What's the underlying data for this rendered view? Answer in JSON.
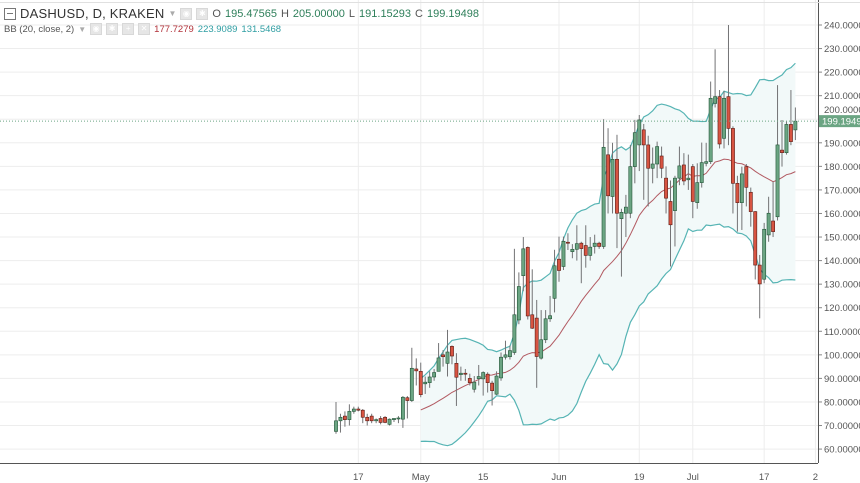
{
  "legend": {
    "symbol": "DASHUSD, D, KRAKEN",
    "o_label": "O",
    "o": "195.47565",
    "h_label": "H",
    "h": "205.00000",
    "l_label": "L",
    "l": "191.15293",
    "c_label": "C",
    "c": "199.19498",
    "indicator": "BB (20, close, 2)",
    "bb_basis": "177.7279",
    "bb_upper": "223.9089",
    "bb_lower": "131.5468"
  },
  "colors": {
    "up": "#6ba583",
    "up_border": "#225437",
    "down": "#d75442",
    "down_border": "#5b1a13",
    "wick": "#737375",
    "band": "#56b4b4",
    "band_fill": "#f2f9f9",
    "basis": "#b25a62",
    "last_price": "#6ba583"
  },
  "chart_data": {
    "type": "candlestick",
    "interval": "1D",
    "ylim": [
      50,
      245
    ],
    "yticks": [
      "240.00000",
      "230.00000",
      "220.00000",
      "210.00000",
      "200.00000",
      "190.00000",
      "180.00000",
      "170.00000",
      "160.00000",
      "150.00000",
      "140.00000",
      "130.00000",
      "120.00000",
      "110.00000",
      "100.00000",
      "90.00000",
      "80.00000",
      "70.00000",
      "60.00000"
    ],
    "xticks": [
      {
        "label": "17",
        "date": "2017-04-17"
      },
      {
        "label": "May",
        "date": "2017-05-01"
      },
      {
        "label": "15",
        "date": "2017-05-15"
      },
      {
        "label": "Jun",
        "date": "2017-06-01"
      },
      {
        "label": "19",
        "date": "2017-06-19"
      },
      {
        "label": "Jul",
        "date": "2017-07-01"
      },
      {
        "label": "17",
        "date": "2017-07-17"
      },
      {
        "label": "2",
        "date": ""
      }
    ],
    "last_price": "199.19498",
    "grid": true,
    "indicator": {
      "type": "bollinger",
      "length": 20,
      "source": "close",
      "mult": 2
    },
    "columns": [
      "date",
      "open",
      "high",
      "low",
      "close"
    ],
    "candles": [
      [
        "2017-04-12",
        67.5,
        80,
        66.5,
        72
      ],
      [
        "2017-04-13",
        72,
        75,
        67,
        73.5
      ],
      [
        "2017-04-14",
        74,
        76,
        69.5,
        72.5
      ],
      [
        "2017-04-15",
        72.5,
        79,
        70,
        76
      ],
      [
        "2017-04-16",
        76,
        78,
        75,
        77
      ],
      [
        "2017-04-17",
        77,
        78,
        76,
        76.5
      ],
      [
        "2017-04-18",
        76.5,
        77,
        71,
        73.5
      ],
      [
        "2017-04-19",
        73.5,
        75,
        70,
        72
      ],
      [
        "2017-04-20",
        74,
        75,
        71,
        72
      ],
      [
        "2017-04-21",
        72,
        73,
        71,
        72.5
      ],
      [
        "2017-04-22",
        73,
        74,
        70.5,
        71.3
      ],
      [
        "2017-04-23",
        73.5,
        74,
        71,
        71.3
      ],
      [
        "2017-04-24",
        70.5,
        73,
        70,
        72.7
      ],
      [
        "2017-04-25",
        72.5,
        73,
        71.5,
        73
      ],
      [
        "2017-04-26",
        73,
        74,
        71,
        73.2
      ],
      [
        "2017-04-27",
        72.7,
        82.5,
        69,
        82
      ],
      [
        "2017-04-28",
        81.8,
        82.5,
        73,
        80.6
      ],
      [
        "2017-04-29",
        80.6,
        103,
        80,
        94.3
      ],
      [
        "2017-04-30",
        94,
        98.5,
        87,
        93.2
      ],
      [
        "2017-05-01",
        93,
        96.7,
        82,
        83.1
      ],
      [
        "2017-05-02",
        87.7,
        90.8,
        83.4,
        88.4
      ],
      [
        "2017-05-03",
        88.2,
        93,
        86,
        90.6
      ],
      [
        "2017-05-04",
        90.6,
        94,
        89,
        92.5
      ],
      [
        "2017-05-05",
        93,
        105,
        93,
        98.7
      ],
      [
        "2017-05-06",
        100,
        102,
        95,
        99.2
      ],
      [
        "2017-05-07",
        96.4,
        110.6,
        90.8,
        101.2
      ],
      [
        "2017-05-08",
        103.6,
        104,
        96,
        99.5
      ],
      [
        "2017-05-09",
        96.4,
        100.7,
        78.3,
        90.5
      ],
      [
        "2017-05-10",
        91.6,
        95,
        89,
        92.2
      ],
      [
        "2017-05-11",
        92.2,
        94,
        89,
        92
      ],
      [
        "2017-05-12",
        90,
        92,
        87,
        88.2
      ],
      [
        "2017-05-13",
        85.4,
        91,
        84,
        88.4
      ],
      [
        "2017-05-14",
        89.9,
        95.7,
        87,
        90.8
      ],
      [
        "2017-05-15",
        89.8,
        93,
        82.7,
        92.5
      ],
      [
        "2017-05-16",
        91.8,
        92.6,
        84,
        88.2
      ],
      [
        "2017-05-17",
        88,
        89,
        78.5,
        84.8
      ],
      [
        "2017-05-18",
        83.3,
        93,
        83,
        91
      ],
      [
        "2017-05-19",
        90.2,
        101,
        89,
        99
      ],
      [
        "2017-05-20",
        99,
        106,
        98,
        100
      ],
      [
        "2017-05-21",
        99.2,
        104,
        98,
        101.8
      ],
      [
        "2017-05-22",
        101,
        145,
        100,
        117
      ],
      [
        "2017-05-23",
        114.8,
        135,
        113,
        129
      ],
      [
        "2017-05-24",
        133.6,
        150,
        127,
        145
      ],
      [
        "2017-05-25",
        145.6,
        146,
        115,
        116.5
      ],
      [
        "2017-05-26",
        117,
        136.3,
        111,
        111.3
      ],
      [
        "2017-05-27",
        115.6,
        123.3,
        86,
        99.3
      ],
      [
        "2017-05-28",
        98.6,
        119,
        98,
        106.4
      ],
      [
        "2017-05-29",
        106.4,
        119,
        105,
        115.3
      ],
      [
        "2017-05-30",
        115.3,
        125,
        114,
        116.6
      ],
      [
        "2017-05-31",
        124,
        144.6,
        118,
        137.8
      ],
      [
        "2017-06-01",
        140.6,
        150.2,
        131,
        135.8
      ],
      [
        "2017-06-02",
        137.5,
        150.2,
        136,
        148.2
      ],
      [
        "2017-06-03",
        147.8,
        151.6,
        144.5,
        147.4
      ],
      [
        "2017-06-04",
        143.8,
        147,
        141,
        144.8
      ],
      [
        "2017-06-05",
        144.8,
        155,
        140,
        147.2
      ],
      [
        "2017-06-06",
        147.4,
        148,
        130.4,
        145.1
      ],
      [
        "2017-06-07",
        146.4,
        155,
        137,
        142.2
      ],
      [
        "2017-06-08",
        142.2,
        150,
        140,
        145.7
      ],
      [
        "2017-06-09",
        146,
        151,
        143,
        147.4
      ],
      [
        "2017-06-10",
        147.4,
        148,
        145,
        146
      ],
      [
        "2017-06-11",
        146,
        200,
        145,
        188.1
      ],
      [
        "2017-06-12",
        184.9,
        196.2,
        160,
        167.5
      ],
      [
        "2017-06-13",
        167.2,
        190,
        160,
        183
      ],
      [
        "2017-06-14",
        183,
        193.4,
        145.3,
        160.1
      ],
      [
        "2017-06-15",
        157.8,
        162,
        133.2,
        160.5
      ],
      [
        "2017-06-16",
        160.1,
        167.9,
        150,
        162.7
      ],
      [
        "2017-06-17",
        160.1,
        189.1,
        158,
        179.9
      ],
      [
        "2017-06-18",
        179.9,
        199.7,
        172.8,
        194.3
      ],
      [
        "2017-06-19",
        189.1,
        201.8,
        178,
        199.7
      ],
      [
        "2017-06-20",
        195.5,
        198,
        165.8,
        189.1
      ],
      [
        "2017-06-21",
        189.1,
        193,
        163,
        179.2
      ],
      [
        "2017-06-22",
        179.2,
        188,
        172.8,
        181
      ],
      [
        "2017-06-23",
        181,
        190.5,
        175,
        188.4
      ],
      [
        "2017-06-24",
        184.4,
        188.4,
        175,
        179.2
      ],
      [
        "2017-06-25",
        175,
        180,
        160,
        166.5
      ],
      [
        "2017-06-26",
        165.1,
        174,
        137.5,
        155.2
      ],
      [
        "2017-06-27",
        161.2,
        176,
        146,
        175
      ],
      [
        "2017-06-28",
        175,
        188.4,
        172,
        180.2
      ],
      [
        "2017-06-29",
        180.6,
        185.6,
        172,
        173.8
      ],
      [
        "2017-06-30",
        174.3,
        185,
        170,
        175
      ],
      [
        "2017-07-01",
        179.9,
        181,
        158,
        165.1
      ],
      [
        "2017-07-02",
        164.6,
        181.3,
        162,
        173.1
      ],
      [
        "2017-07-03",
        173.1,
        190.1,
        171,
        181.6
      ],
      [
        "2017-07-04",
        181.3,
        190,
        180,
        182
      ],
      [
        "2017-07-05",
        182,
        216,
        181,
        208.9
      ],
      [
        "2017-07-06",
        206.7,
        229.7,
        205,
        209.6
      ],
      [
        "2017-07-07",
        209.6,
        212.4,
        187.6,
        189.5
      ],
      [
        "2017-07-08",
        191.9,
        212,
        187.6,
        208.9
      ],
      [
        "2017-07-09",
        209.6,
        240,
        189,
        196.1
      ],
      [
        "2017-07-10",
        196.1,
        197,
        160,
        172.8
      ],
      [
        "2017-07-11",
        172.8,
        176,
        152.3,
        164.6
      ],
      [
        "2017-07-12",
        164.6,
        179.9,
        153,
        176.8
      ],
      [
        "2017-07-13",
        179.9,
        181,
        163,
        171.1
      ],
      [
        "2017-07-14",
        169,
        171,
        154.4,
        160.8
      ],
      [
        "2017-07-15",
        160.8,
        161,
        132,
        138.1
      ],
      [
        "2017-07-16",
        138.1,
        142.4,
        115.5,
        130.1
      ],
      [
        "2017-07-17",
        132.1,
        156,
        130.4,
        153.3
      ],
      [
        "2017-07-18",
        150.9,
        167.1,
        148,
        160.1
      ],
      [
        "2017-07-19",
        156.8,
        173.5,
        150,
        152.3
      ],
      [
        "2017-07-20",
        158.6,
        214.5,
        157,
        189.1
      ],
      [
        "2017-07-21",
        186.9,
        199.7,
        179.9,
        185.8
      ],
      [
        "2017-07-22",
        185.8,
        199,
        185,
        197.8
      ],
      [
        "2017-07-23",
        197.8,
        212.4,
        189,
        190.5
      ],
      [
        "2017-07-24",
        195.47565,
        205,
        191.15293,
        199.19498
      ]
    ]
  }
}
